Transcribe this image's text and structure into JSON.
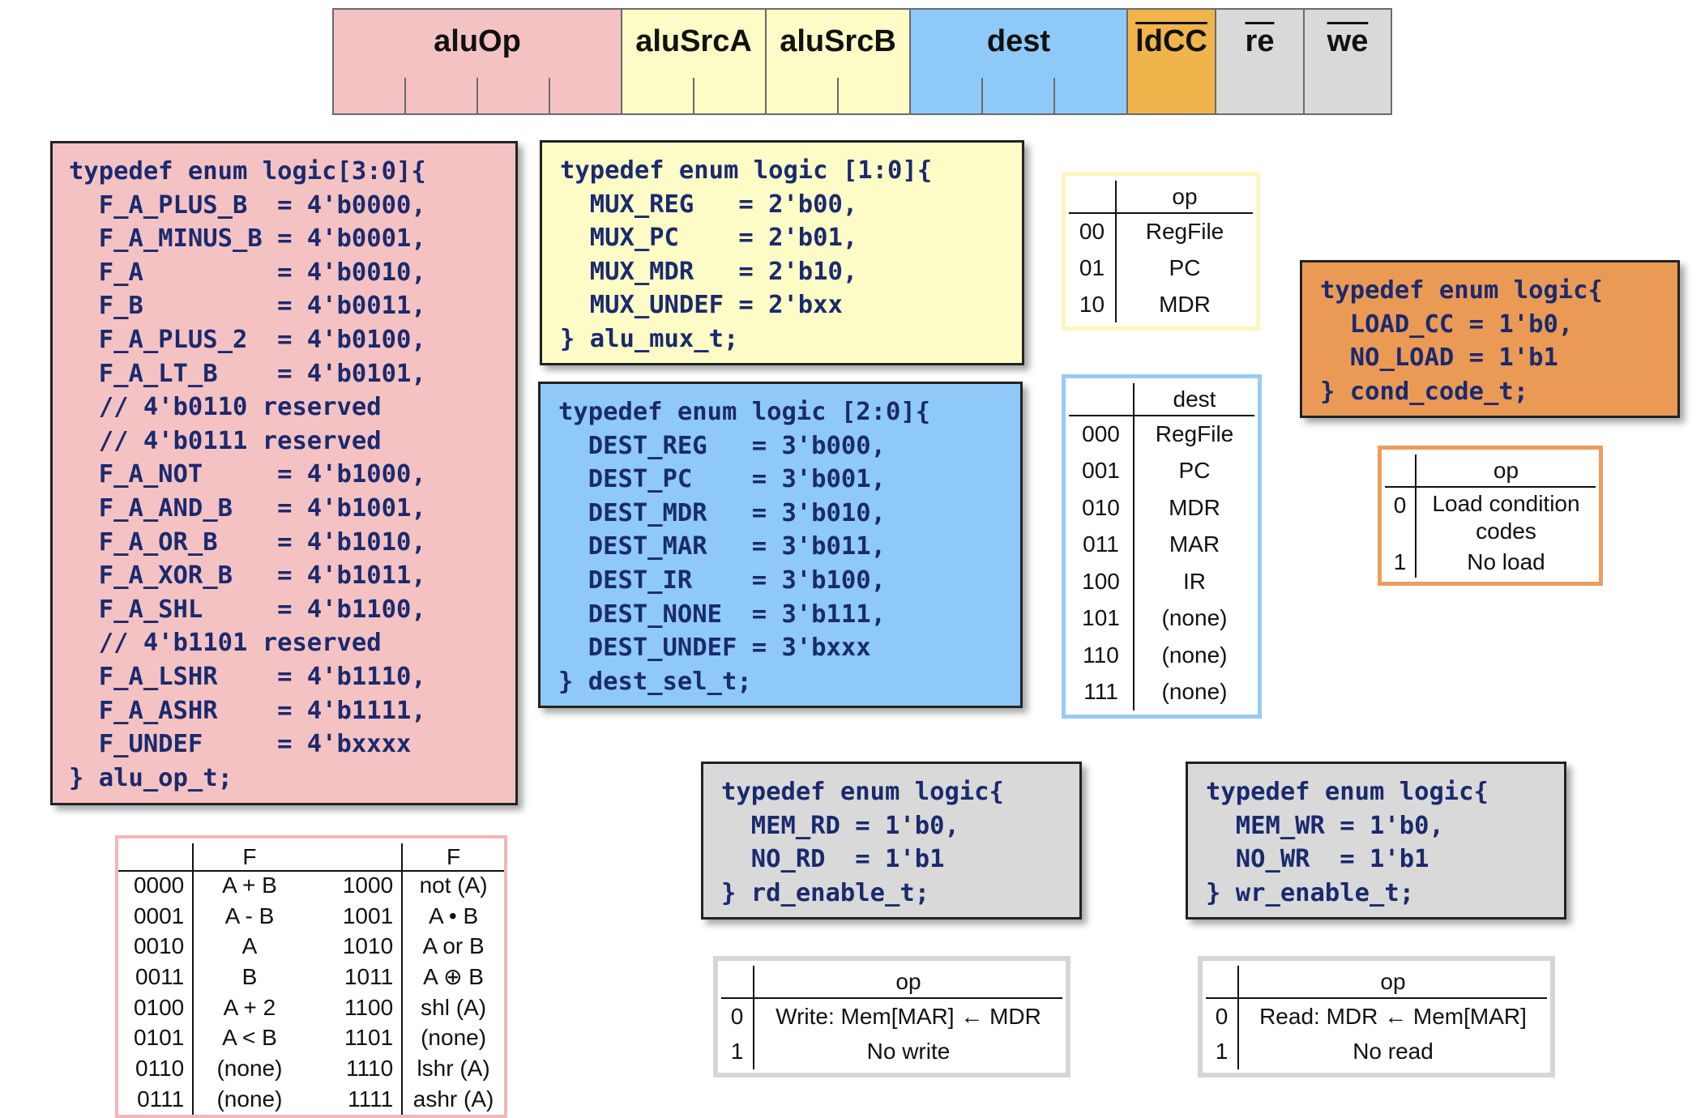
{
  "control_word": {
    "fields": [
      {
        "label": "aluOp",
        "color": "#f5c2c3",
        "overline": false
      },
      {
        "label": "aluSrcA",
        "color": "#fdfbc6",
        "overline": false
      },
      {
        "label": "aluSrcB",
        "color": "#fdfbc6",
        "overline": false
      },
      {
        "label": "dest",
        "color": "#8fc9f7",
        "overline": false
      },
      {
        "label": "ldCC",
        "color": "#f0b44c",
        "overline": true
      },
      {
        "label": "re",
        "color": "#d9d9d9",
        "overline": true
      },
      {
        "label": "we",
        "color": "#d9d9d9",
        "overline": true
      }
    ]
  },
  "enums": {
    "alu_op": {
      "color": "#f5c2c3",
      "lines": [
        "typedef enum logic[3:0]{",
        "  F_A_PLUS_B  = 4'b0000,",
        "  F_A_MINUS_B = 4'b0001,",
        "  F_A         = 4'b0010,",
        "  F_B         = 4'b0011,",
        "  F_A_PLUS_2  = 4'b0100,",
        "  F_A_LT_B    = 4'b0101,",
        "  // 4'b0110 reserved",
        "  // 4'b0111 reserved",
        "  F_A_NOT     = 4'b1000,",
        "  F_A_AND_B   = 4'b1001,",
        "  F_A_OR_B    = 4'b1010,",
        "  F_A_XOR_B   = 4'b1011,",
        "  F_A_SHL     = 4'b1100,",
        "  // 4'b1101 reserved",
        "  F_A_LSHR    = 4'b1110,",
        "  F_A_ASHR    = 4'b1111,",
        "  F_UNDEF     = 4'bxxxx",
        "} alu_op_t;"
      ]
    },
    "alu_mux": {
      "color": "#fdfbc6",
      "lines": [
        "typedef enum logic [1:0]{",
        "  MUX_REG   = 2'b00,",
        "  MUX_PC    = 2'b01,",
        "  MUX_MDR   = 2'b10,",
        "  MUX_UNDEF = 2'bxx",
        "} alu_mux_t;"
      ]
    },
    "dest_sel": {
      "color": "#8fc9f7",
      "lines": [
        "typedef enum logic [2:0]{",
        "  DEST_REG   = 3'b000,",
        "  DEST_PC    = 3'b001,",
        "  DEST_MDR   = 3'b010,",
        "  DEST_MAR   = 3'b011,",
        "  DEST_IR    = 3'b100,",
        "  DEST_NONE  = 3'b111,",
        "  DEST_UNDEF = 3'bxxx",
        "} dest_sel_t;"
      ]
    },
    "cond_code": {
      "color": "#eb9a55",
      "lines": [
        "typedef enum logic{",
        "  LOAD_CC = 1'b0,",
        "  NO_LOAD = 1'b1",
        "} cond_code_t;"
      ]
    },
    "rd_enable": {
      "color": "#d9d9d9",
      "lines": [
        "typedef enum logic{",
        "  MEM_RD = 1'b0,",
        "  NO_RD  = 1'b1",
        "} rd_enable_t;"
      ]
    },
    "wr_enable": {
      "color": "#d9d9d9",
      "lines": [
        "typedef enum logic{",
        "  MEM_WR = 1'b0,",
        "  NO_WR  = 1'b1",
        "} wr_enable_t;"
      ]
    }
  },
  "tables": {
    "alu_op": {
      "border_color": "#f2b7b8",
      "header": [
        "",
        "F",
        "",
        "F"
      ],
      "rows": [
        [
          "0000",
          "A + B",
          "1000",
          "not (A)"
        ],
        [
          "0001",
          "A - B",
          "1001",
          "A • B"
        ],
        [
          "0010",
          "A",
          "1010",
          "A or B"
        ],
        [
          "0011",
          "B",
          "1011",
          "A ⊕ B"
        ],
        [
          "0100",
          "A + 2",
          "1100",
          "shl (A)"
        ],
        [
          "0101",
          "A < B",
          "1101",
          "(none)"
        ],
        [
          "0110",
          "(none)",
          "1110",
          "lshr (A)"
        ],
        [
          "0111",
          "(none)",
          "1111",
          "ashr (A)"
        ]
      ]
    },
    "alu_src": {
      "border_color": "#fbf7bf",
      "header": [
        "",
        "op"
      ],
      "rows": [
        [
          "00",
          "RegFile"
        ],
        [
          "01",
          "PC"
        ],
        [
          "10",
          "MDR"
        ]
      ]
    },
    "dest": {
      "border_color": "#98ccf5",
      "header": [
        "",
        "dest"
      ],
      "rows": [
        [
          "000",
          "RegFile"
        ],
        [
          "001",
          "PC"
        ],
        [
          "010",
          "MDR"
        ],
        [
          "011",
          "MAR"
        ],
        [
          "100",
          "IR"
        ],
        [
          "101",
          "(none)"
        ],
        [
          "110",
          "(none)"
        ],
        [
          "111",
          "(none)"
        ]
      ]
    },
    "ldcc": {
      "border_color": "#ec9d5c",
      "header": [
        "",
        "op"
      ],
      "rows": [
        [
          "0",
          "Load condition codes"
        ],
        [
          "1",
          "No load"
        ]
      ]
    },
    "we": {
      "border_color": "#d6d6d6",
      "header": [
        "",
        "op"
      ],
      "rows": [
        [
          "0",
          "Write: Mem[MAR] ← MDR"
        ],
        [
          "1",
          "No write"
        ]
      ]
    },
    "re": {
      "border_color": "#d6d6d6",
      "header": [
        "",
        "op"
      ],
      "rows": [
        [
          "0",
          "Read: MDR ← Mem[MAR]"
        ],
        [
          "1",
          "No read"
        ]
      ]
    }
  }
}
